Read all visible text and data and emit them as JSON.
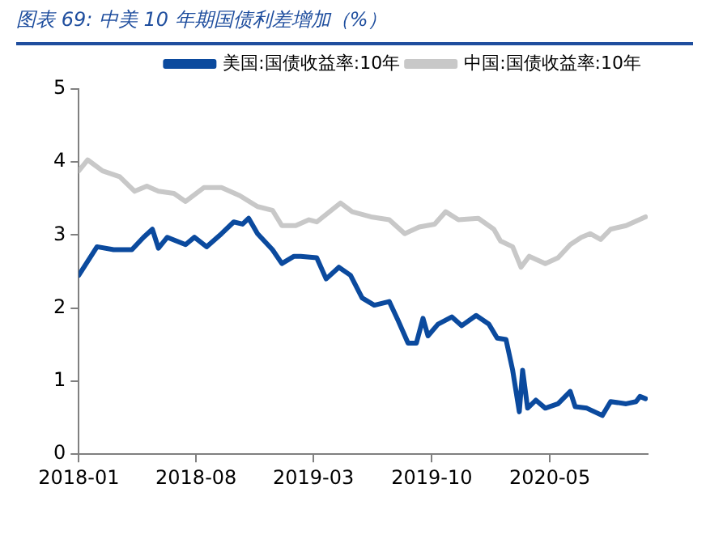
{
  "chart_data": {
    "type": "line",
    "title": "图表 69:  中美 10 年期国债利差增加（%）",
    "xlim": [
      "2018-01-01",
      "2020-10-25"
    ],
    "xticks": [
      "2018-01",
      "2018-08",
      "2019-03",
      "2019-10",
      "2020-05"
    ],
    "ylim": [
      0,
      5
    ],
    "yticks": [
      0,
      1,
      2,
      3,
      4,
      5
    ],
    "grid": false,
    "legend": "top",
    "marker": "none",
    "line_style": "solid",
    "series": [
      {
        "name": "美国:国债收益率:10年",
        "color": "#0b4a9e",
        "x": [
          "2018-01-01",
          "2018-02-03",
          "2018-03-05",
          "2018-04-07",
          "2018-04-28",
          "2018-05-14",
          "2018-05-25",
          "2018-06-10",
          "2018-07-13",
          "2018-07-29",
          "2018-08-20",
          "2018-09-16",
          "2018-10-08",
          "2018-10-24",
          "2018-11-04",
          "2018-11-20",
          "2018-12-17",
          "2019-01-03",
          "2019-01-25",
          "2019-02-06",
          "2019-03-07",
          "2019-03-24",
          "2019-04-16",
          "2019-05-07",
          "2019-05-28",
          "2019-06-19",
          "2019-07-16",
          "2019-08-01",
          "2019-08-19",
          "2019-09-03",
          "2019-09-15",
          "2019-09-24",
          "2019-10-12",
          "2019-11-06",
          "2019-11-24",
          "2019-12-20",
          "2020-01-12",
          "2020-01-27",
          "2020-02-12",
          "2020-02-24",
          "2020-03-07",
          "2020-03-13",
          "2020-03-22",
          "2020-04-06",
          "2020-04-23",
          "2020-05-16",
          "2020-06-07",
          "2020-06-16",
          "2020-07-07",
          "2020-08-04",
          "2020-08-19",
          "2020-09-16",
          "2020-10-04",
          "2020-10-11",
          "2020-10-21"
        ],
        "values": [
          2.45,
          2.84,
          2.8,
          2.8,
          2.97,
          3.08,
          2.82,
          2.97,
          2.87,
          2.97,
          2.84,
          3.02,
          3.18,
          3.15,
          3.23,
          3.02,
          2.8,
          2.61,
          2.71,
          2.71,
          2.69,
          2.4,
          2.56,
          2.45,
          2.14,
          2.04,
          2.09,
          1.83,
          1.52,
          1.52,
          1.86,
          1.62,
          1.78,
          1.88,
          1.76,
          1.9,
          1.78,
          1.59,
          1.57,
          1.15,
          0.58,
          1.15,
          0.63,
          0.74,
          0.63,
          0.69,
          0.86,
          0.65,
          0.63,
          0.53,
          0.72,
          0.69,
          0.72,
          0.79,
          0.76
        ]
      },
      {
        "name": "中国:国债收益率:10年",
        "color": "#c8c8c8",
        "x": [
          "2018-01-01",
          "2018-01-17",
          "2018-02-13",
          "2018-03-16",
          "2018-04-12",
          "2018-05-04",
          "2018-05-25",
          "2018-06-22",
          "2018-07-13",
          "2018-08-15",
          "2018-09-16",
          "2018-10-19",
          "2018-11-20",
          "2018-12-17",
          "2019-01-03",
          "2019-01-28",
          "2019-02-21",
          "2019-03-07",
          "2019-04-19",
          "2019-05-10",
          "2019-06-13",
          "2019-07-16",
          "2019-08-13",
          "2019-09-08",
          "2019-10-06",
          "2019-10-26",
          "2019-11-18",
          "2019-12-24",
          "2020-01-21",
          "2020-02-02",
          "2020-02-24",
          "2020-03-10",
          "2020-03-25",
          "2020-04-23",
          "2020-05-16",
          "2020-06-07",
          "2020-06-27",
          "2020-07-13",
          "2020-08-01",
          "2020-08-19",
          "2020-09-16",
          "2020-10-21"
        ],
        "values": [
          3.88,
          4.03,
          3.88,
          3.8,
          3.6,
          3.67,
          3.6,
          3.57,
          3.46,
          3.65,
          3.65,
          3.54,
          3.39,
          3.34,
          3.13,
          3.13,
          3.21,
          3.18,
          3.44,
          3.32,
          3.25,
          3.21,
          3.02,
          3.11,
          3.15,
          3.32,
          3.21,
          3.23,
          3.08,
          2.92,
          2.84,
          2.56,
          2.71,
          2.61,
          2.69,
          2.87,
          2.97,
          3.02,
          2.94,
          3.08,
          3.13,
          3.25
        ]
      }
    ]
  }
}
